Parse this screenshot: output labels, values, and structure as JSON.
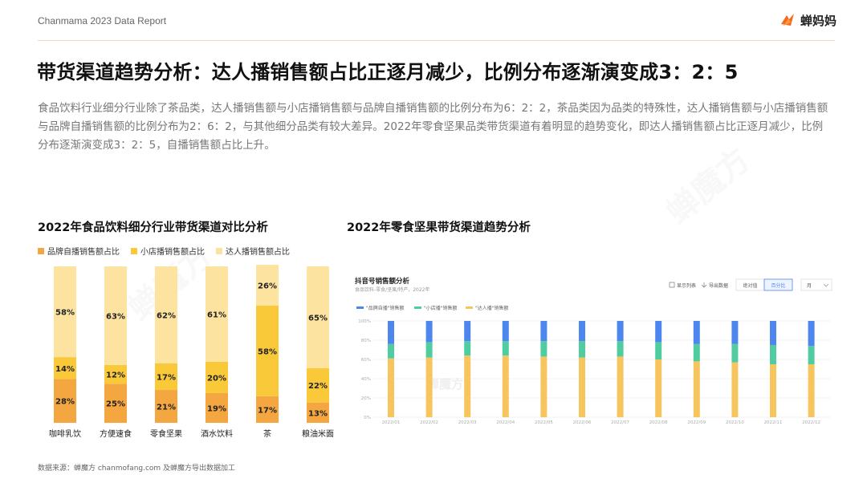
{
  "header": {
    "brand_report": "Chanmama 2023 Data Report",
    "logo_text": "蝉妈妈"
  },
  "title": "带货渠道趋势分析：达人播销售额占比正逐月减少，比例分布逐渐演变成3：2：5",
  "description": "食品饮料行业细分行业除了茶品类，达人播销售额与小店播销售额与品牌自播销售额的比例分布为6：2：2，茶品类因为品类的特殊性，达人播销售额与小店播销售额与品牌自播销售额的比例分布为2：6：2，与其他细分品类有较大差异。2022年零食坚果品类带货渠道有着明显的趋势变化，即达人播销售额占比正逐月减少，比例分布逐渐演变成3：2：5，自播销售额占比上升。",
  "left_section_title": "2022年食品饮料细分行业带货渠道对比分析",
  "right_section_title": "2022年零食坚果带货渠道趋势分析",
  "legend": [
    {
      "label": "品牌自播销售额占比",
      "color": "#f4a640"
    },
    {
      "label": "小店播销售额占比",
      "color": "#fac93a"
    },
    {
      "label": "达人播销售额占比",
      "color": "#fde3a0"
    }
  ],
  "right_panel": {
    "title": "抖音号销售额分析",
    "subtitle": "食品饮料-零食/坚果/特产，2022年",
    "tools": [
      "显示列表",
      "导出数据"
    ],
    "toggle": [
      "绝对值",
      "百分比"
    ],
    "period": "月",
    "watermark": "蝉魔方"
  },
  "source": "数据来源：蝉魔方 chanmofang.com 及蝉魔方导出数据加工",
  "watermark_text": "蝉魔方",
  "chart_data": [
    {
      "type": "bar",
      "stacked": true,
      "title": "2022年食品饮料细分行业带货渠道对比分析",
      "categories": [
        "咖啡乳饮",
        "方便速食",
        "零食坚果",
        "酒水饮料",
        "茶",
        "粮油米面"
      ],
      "series": [
        {
          "name": "品牌自播销售额占比",
          "color": "#f4a640",
          "values": [
            28,
            25,
            21,
            19,
            17,
            13
          ],
          "labels": [
            "28%",
            "25%",
            "21%",
            "19%",
            "17%",
            "13%"
          ]
        },
        {
          "name": "小店播销售额占比",
          "color": "#fac93a",
          "values": [
            14,
            12,
            17,
            20,
            58,
            22
          ],
          "labels": [
            "14%",
            "12%",
            "17%",
            "20%",
            "58%",
            "22%"
          ]
        },
        {
          "name": "达人播销售额占比",
          "color": "#fde3a0",
          "values": [
            58,
            63,
            62,
            61,
            26,
            65
          ],
          "labels": [
            "58%",
            "63%",
            "62%",
            "61%",
            "26%",
            "65%"
          ]
        }
      ],
      "ylim": [
        0,
        100
      ],
      "xlabel": "",
      "ylabel": ""
    },
    {
      "type": "bar",
      "stacked": true,
      "title": "抖音号销售额分析",
      "categories": [
        "2022/01",
        "2022/02",
        "2022/03",
        "2022/04",
        "2022/05",
        "2022/06",
        "2022/07",
        "2022/08",
        "2022/09",
        "2022/10",
        "2022/11",
        "2022/12"
      ],
      "series": [
        {
          "name": "\"达人播\"销售额",
          "color": "#f7c55e",
          "values": [
            61,
            62,
            64,
            64,
            63,
            62,
            63,
            60,
            58,
            57,
            55,
            55
          ]
        },
        {
          "name": "\"小店播\"销售额",
          "color": "#4fcda0",
          "values": [
            15,
            16,
            15,
            15,
            16,
            17,
            16,
            18,
            18,
            19,
            20,
            19
          ]
        },
        {
          "name": "\"品牌自播\"销售额",
          "color": "#4e86f0",
          "values": [
            24,
            22,
            21,
            21,
            21,
            21,
            21,
            22,
            24,
            24,
            25,
            26
          ]
        }
      ],
      "ylim": [
        0,
        100
      ],
      "yticks": [
        "0%",
        "20%",
        "40%",
        "60%",
        "80%",
        "100%"
      ],
      "legend_order": [
        "\"品牌自播\"销售额",
        "\"小店播\"销售额",
        "\"达人播\"销售额"
      ]
    }
  ]
}
